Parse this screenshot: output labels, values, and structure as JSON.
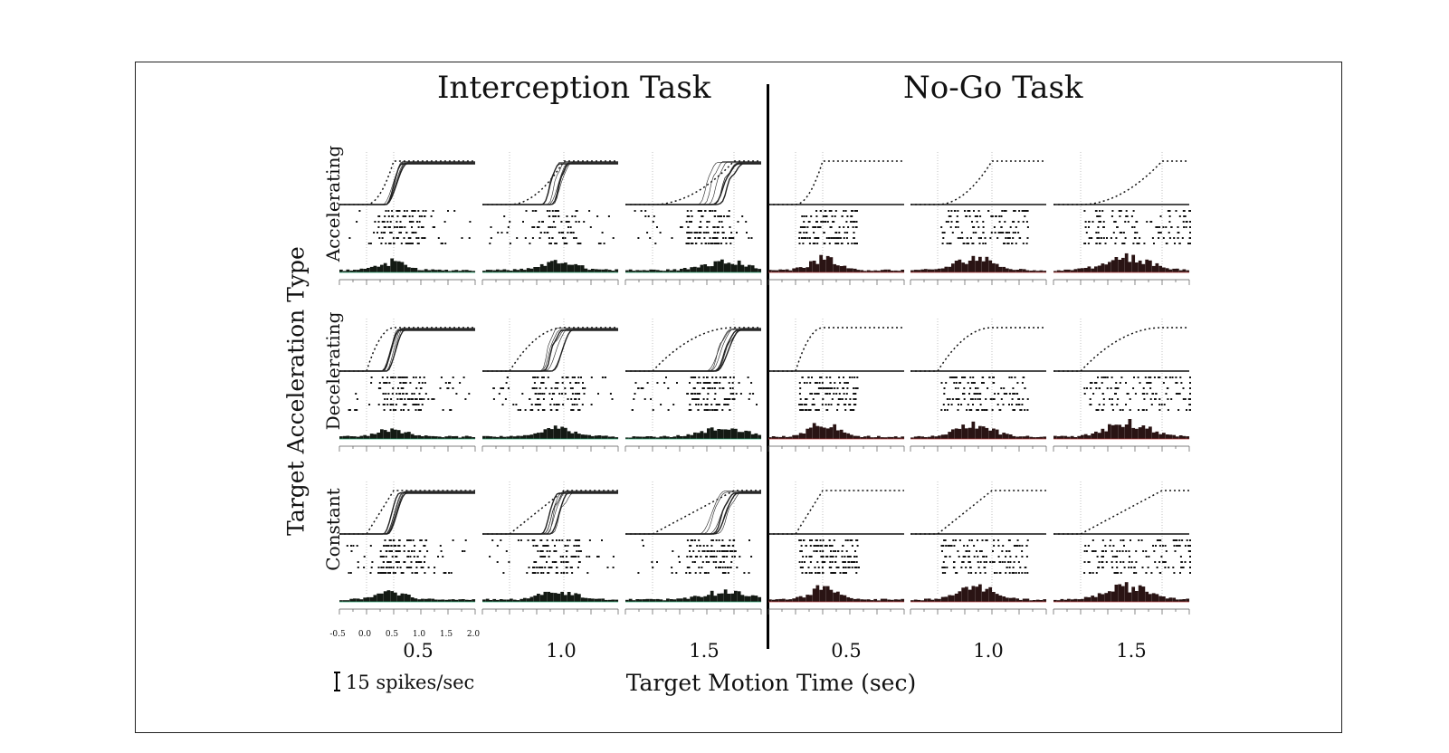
{
  "figure": {
    "left_title": "Interception Task",
    "right_title": "No-Go Task",
    "y_axis_label": "Target Acceleration Type",
    "x_axis_label": "Target Motion Time (sec)",
    "scale_bar_label": "15 spikes/sec",
    "rows": [
      "Accelerating",
      "Decelerating",
      "Constant"
    ],
    "durations": [
      "0.5",
      "1.0",
      "1.5",
      "0.5",
      "1.0",
      "1.5"
    ],
    "tick_labels": [
      "-0.5",
      "0.0",
      "0.5",
      "1.0",
      "1.5",
      "2.0"
    ]
  },
  "chart_data": {
    "type": "panel-grid",
    "panel_contents": [
      "position traces",
      "spike raster",
      "spike histogram"
    ],
    "x_range_sec": [
      -0.5,
      2.0
    ],
    "tasks": [
      "Interception Task",
      "No-Go Task"
    ],
    "target_motion_times_sec": [
      0.5,
      1.0,
      1.5
    ],
    "acceleration_types": [
      "Accelerating",
      "Decelerating",
      "Constant"
    ]
  }
}
